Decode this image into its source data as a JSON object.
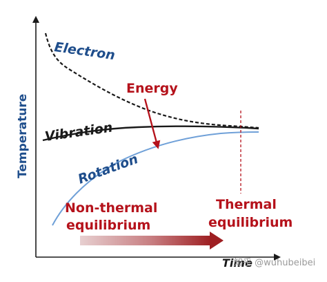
{
  "axes": {
    "y_label": "Temperature",
    "x_label": "Time"
  },
  "curves": {
    "electron": "Electron",
    "vibration": "Vibration",
    "rotation": "Rotation"
  },
  "annotations": {
    "energy": "Energy",
    "non_thermal_line1": "Non-thermal",
    "non_thermal_line2": "equilibrium",
    "thermal_line1": "Thermal",
    "thermal_line2": "equilibrium"
  },
  "watermark": "知乎 @wuhubeibei",
  "colors": {
    "blue": "#1f4e8c",
    "red": "#b5121b",
    "rotation_curve": "#6fa0d8",
    "black": "#1a1a1a"
  }
}
